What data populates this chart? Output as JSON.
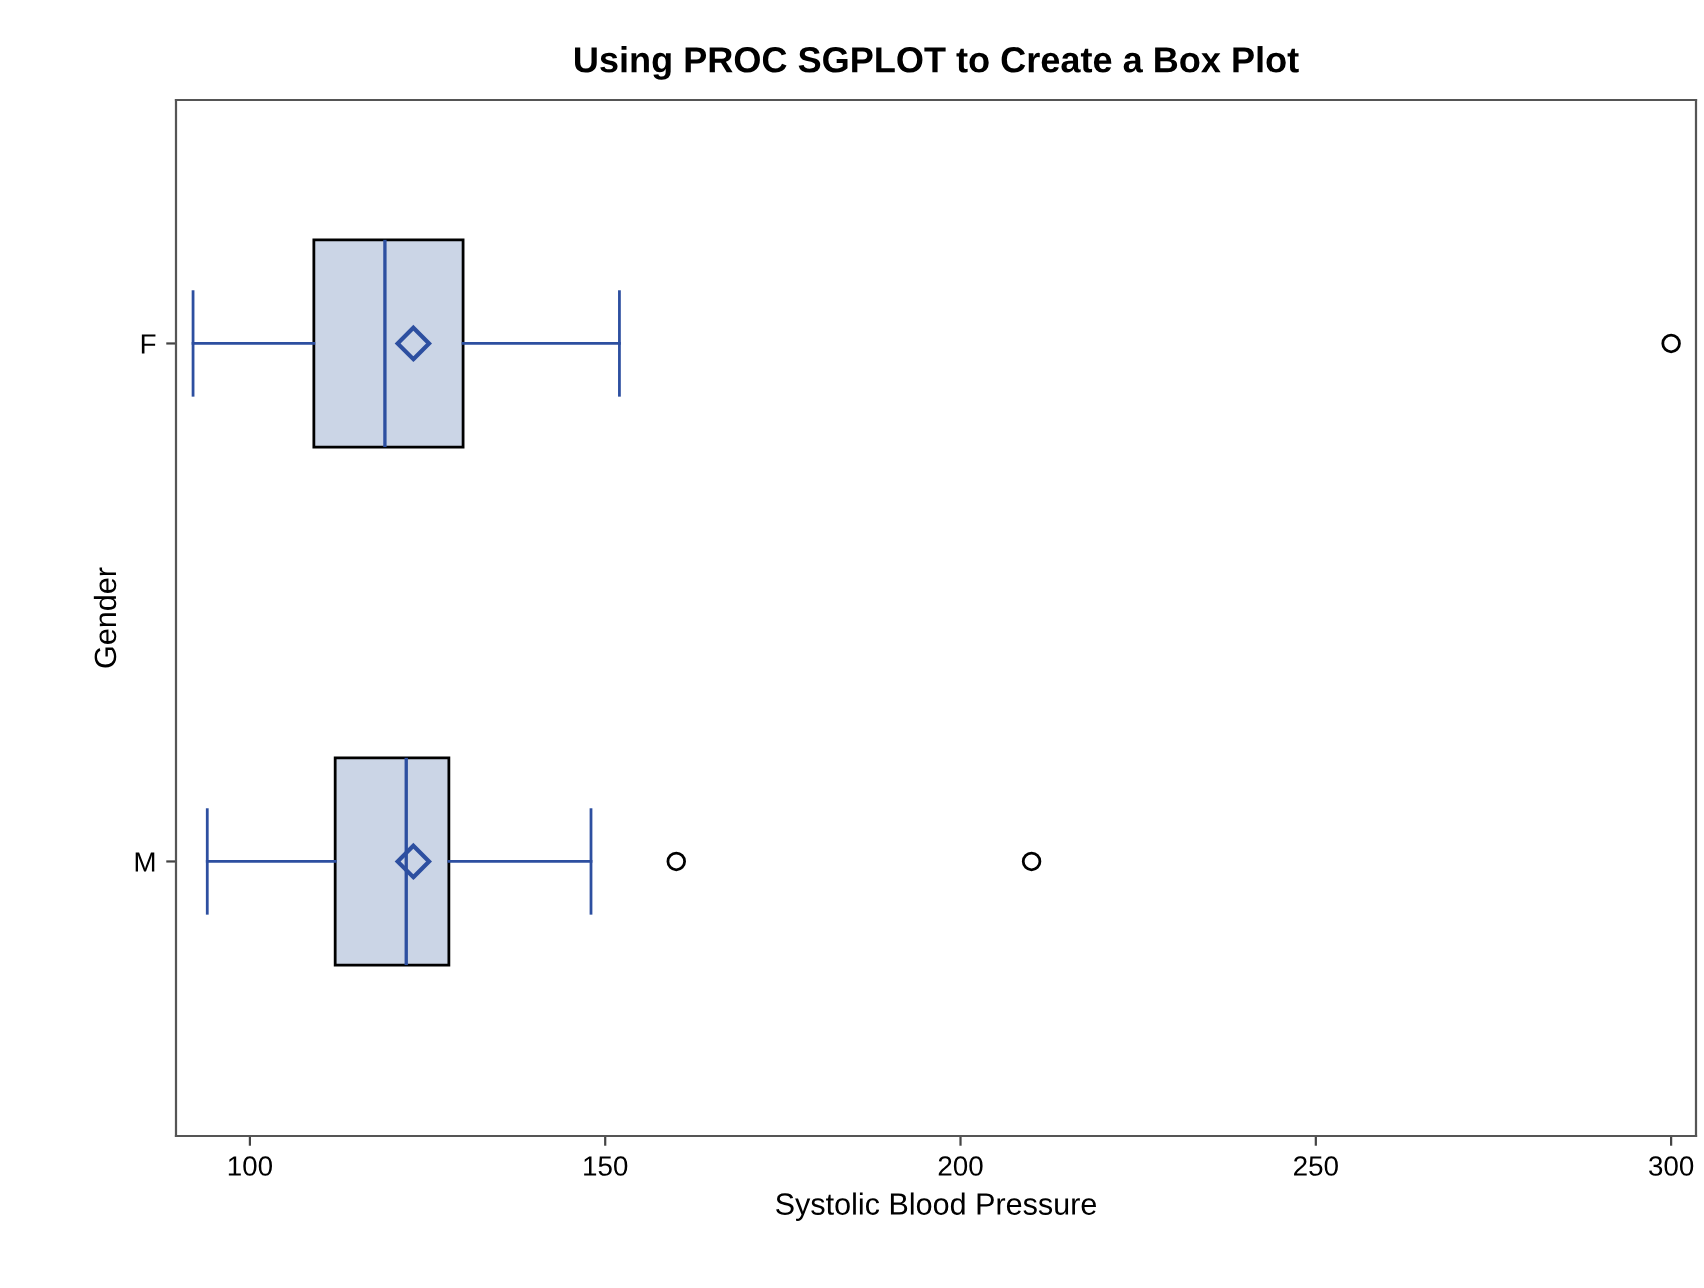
{
  "chart_data": {
    "type": "box",
    "title": "Using PROC SGPLOT to Create a Box Plot",
    "xlabel": "Systolic Blood Pressure",
    "ylabel": "Gender",
    "orientation": "horizontal",
    "categories": [
      "F",
      "M"
    ],
    "series": [
      {
        "color": "#cbd5e6",
        "boxes": [
          {
            "low": 92,
            "q1": 109,
            "median": 119,
            "q3": 130,
            "high": 152,
            "mean": 123,
            "outliers": [
              300
            ]
          },
          {
            "low": 94,
            "q1": 112,
            "median": 122,
            "q3": 128,
            "high": 148,
            "mean": 123,
            "outliers": [
              160,
              210
            ]
          }
        ]
      }
    ],
    "xlim": [
      89.6,
      303.5
    ],
    "xticks": [
      100,
      150,
      200,
      250,
      300
    ],
    "grid": false,
    "marker": "diamond"
  }
}
